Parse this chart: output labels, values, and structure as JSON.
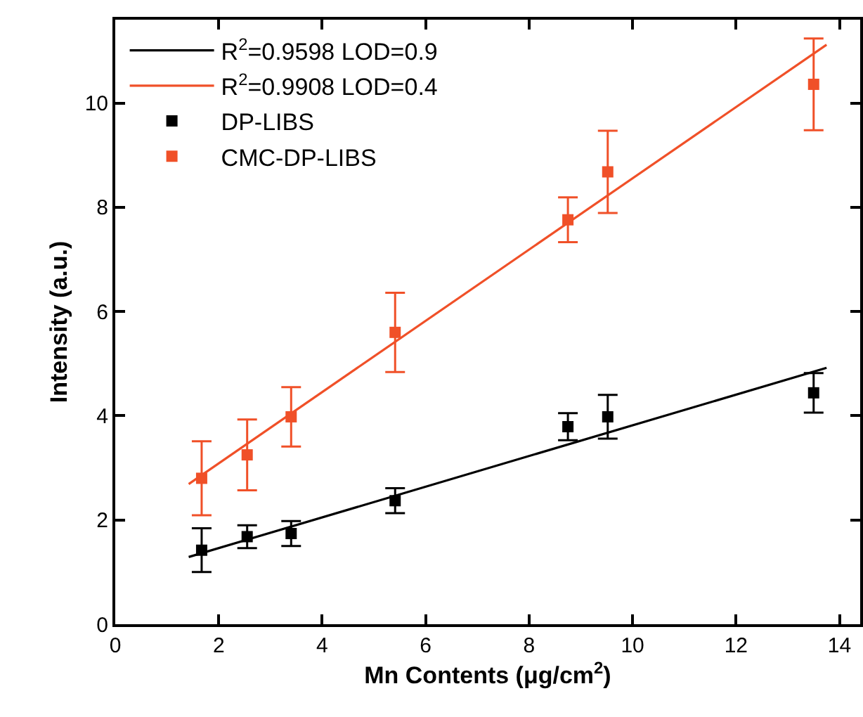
{
  "chart_data": {
    "type": "scatter",
    "xlabel": "Mn Contents (μg/cm$^{2}$)",
    "ylabel": "Intensity (a.u.)",
    "xlim": [
      0,
      14.4
    ],
    "xticks": [
      0,
      2,
      4,
      6,
      8,
      10,
      12,
      14
    ],
    "ylim": [
      0,
      11.6
    ],
    "yticks": [
      0,
      2,
      4,
      6,
      8,
      10
    ],
    "grid": false,
    "legend": "top left",
    "series": [
      {
        "type": "line",
        "name": "R$^{2}$=0.9598 LOD=0.9",
        "color": "#000000",
        "marker": "none",
        "x": [
          1.42,
          13.75
        ],
        "values": [
          1.29,
          4.92
        ]
      },
      {
        "type": "line",
        "name": "R$^{2}$=0.9908 LOD=0.4",
        "color": "#f05028",
        "marker": "none",
        "x": [
          1.42,
          13.75
        ],
        "values": [
          2.69,
          11.12
        ]
      },
      {
        "name": "DP-LIBS",
        "color": "#000000",
        "marker": "square",
        "x": [
          1.67,
          2.55,
          3.4,
          5.41,
          8.75,
          9.52,
          13.5
        ],
        "values": [
          1.42,
          1.68,
          1.74,
          2.37,
          3.79,
          3.98,
          4.44
        ],
        "errors": [
          0.42,
          0.22,
          0.24,
          0.24,
          0.26,
          0.42,
          0.38
        ]
      },
      {
        "name": "CMC-DP-LIBS",
        "color": "#f05028",
        "marker": "square",
        "x": [
          1.67,
          2.55,
          3.4,
          5.41,
          8.75,
          9.52,
          13.5
        ],
        "values": [
          2.8,
          3.25,
          3.98,
          5.6,
          7.76,
          8.68,
          10.36
        ],
        "errors": [
          0.71,
          0.68,
          0.57,
          0.76,
          0.43,
          0.79,
          0.88
        ]
      }
    ]
  }
}
